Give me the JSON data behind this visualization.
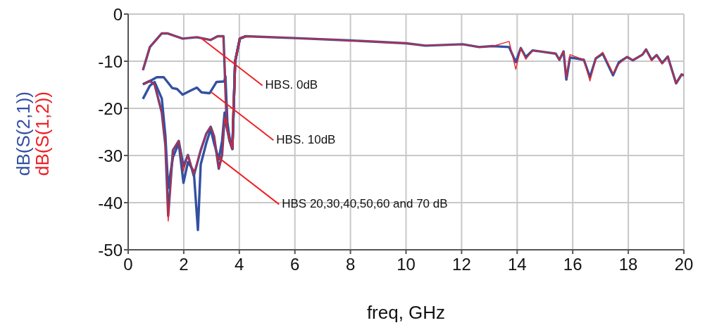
{
  "chart_data": {
    "type": "line",
    "xlabel": "freq, GHz",
    "xlim": [
      0,
      20
    ],
    "xticks": [
      0,
      2,
      4,
      6,
      8,
      10,
      12,
      14,
      16,
      18,
      20
    ],
    "ylim": [
      -50,
      0
    ],
    "yticks": [
      -50,
      -40,
      -30,
      -20,
      -10,
      0
    ],
    "grid": true,
    "marker": "none",
    "line_style": "solid",
    "annotations": [
      {
        "text": "HBS. 0dB",
        "x": 2.6,
        "y": -5
      },
      {
        "text": "HBS. 10dB",
        "x": 3.0,
        "y": -16.6
      },
      {
        "text": "HBS 20,30,40,50,60 and 70 dB",
        "x": 3.2,
        "y": -30.2
      }
    ],
    "series": [
      {
        "name": "dB(S(1,2))",
        "color": "#ee2024",
        "x": [
          0.53,
          0.78,
          1.21,
          1.41,
          1.96,
          2.47,
          2.97,
          3.22,
          3.43,
          3.55,
          3.65,
          3.75,
          3.85,
          4.02,
          4.23,
          6.0,
          8.0,
          10.0,
          10.7,
          12.04,
          12.63,
          13.12,
          13.71,
          13.95,
          14.13,
          14.31,
          14.56,
          15.39,
          15.52,
          15.67,
          15.77,
          15.9,
          16.4,
          16.62,
          16.83,
          17.08,
          17.45,
          17.66,
          17.96,
          18.16,
          18.51,
          18.64,
          18.84,
          19.02,
          19.22,
          19.42,
          19.72,
          19.92,
          20
        ],
        "values": [
          -11.9,
          -7.0,
          -4.1,
          -4.1,
          -5.2,
          -4.9,
          -5.5,
          -4.7,
          -4.7,
          -23.9,
          -26.4,
          -28.6,
          -10,
          -5.2,
          -4.7,
          -5.1,
          -5.6,
          -6.2,
          -6.7,
          -6.4,
          -7.0,
          -6.8,
          -5.8,
          -11.7,
          -7.2,
          -9.6,
          -7.7,
          -8.4,
          -9.7,
          -7.9,
          -13.5,
          -8.6,
          -9.7,
          -14.2,
          -9.4,
          -8.1,
          -12.6,
          -10.6,
          -9.1,
          -9.8,
          -8.6,
          -7.5,
          -9.9,
          -8.7,
          -10.6,
          -9.0,
          -14.7,
          -12.8,
          -13.2
        ]
      },
      {
        "color": "#ee2024",
        "x": [
          0.53,
          0.78,
          0.95,
          1.21,
          1.34,
          1.44,
          1.61,
          1.82,
          1.99,
          2.15,
          2.36,
          2.61,
          2.81,
          2.97,
          3.09,
          3.26,
          3.38,
          3.47,
          3.65,
          3.75,
          3.85,
          4.02,
          4.23
        ],
        "values": [
          -14.9,
          -14.2,
          -14.9,
          -20.9,
          -27.9,
          -43.9,
          -28.9,
          -26.9,
          -33.3,
          -29.9,
          -33.9,
          -28.9,
          -25.4,
          -23.9,
          -25.9,
          -32.8,
          -29.9,
          -21.9,
          -26.9,
          -28.6,
          -10,
          -5.2,
          -4.7
        ]
      },
      {
        "name": "dB(S(2,1))",
        "color": "#3350a2",
        "x": [
          0.53,
          0.78,
          1.21,
          1.41,
          1.96,
          2.47,
          2.97,
          3.22,
          3.43,
          3.55,
          3.65,
          3.75,
          3.85,
          4.02,
          4.23,
          6.0,
          8.0,
          10.0,
          10.7,
          12.04,
          12.63,
          13.12,
          13.71,
          13.95,
          14.13,
          14.31,
          14.56,
          15.39,
          15.52,
          15.67,
          15.77,
          15.9,
          16.4,
          16.62,
          16.83,
          17.08,
          17.45,
          17.66,
          17.96,
          18.16,
          18.51,
          18.64,
          18.84,
          19.02,
          19.22,
          19.42,
          19.72,
          19.92,
          20
        ],
        "values": [
          -11.9,
          -7.0,
          -4.1,
          -4.1,
          -5.2,
          -4.9,
          -5.5,
          -4.7,
          -4.7,
          -23.9,
          -26.4,
          -28.6,
          -10,
          -5.2,
          -4.7,
          -5.1,
          -5.6,
          -6.2,
          -6.7,
          -6.4,
          -7.0,
          -6.8,
          -7.0,
          -10.2,
          -7.2,
          -9.1,
          -7.7,
          -8.4,
          -9.7,
          -7.9,
          -13.9,
          -9.2,
          -9.7,
          -13.4,
          -9.4,
          -8.4,
          -13.0,
          -10.2,
          -9.1,
          -9.8,
          -8.6,
          -7.5,
          -9.7,
          -8.7,
          -10.4,
          -9.0,
          -14.7,
          -12.8,
          -13.0
        ]
      },
      {
        "color": "#3350a2",
        "x": [
          0.53,
          0.78,
          1.03,
          1.28,
          1.59,
          1.76,
          1.96,
          2.22,
          2.47,
          2.64,
          2.93,
          3.18,
          3.46,
          3.5,
          3.57,
          3.65,
          3.75,
          3.85,
          4.02,
          4.23
        ],
        "values": [
          -14.9,
          -14.2,
          -13.4,
          -13.4,
          -15.7,
          -15.9,
          -17.1,
          -16.3,
          -15.6,
          -16.6,
          -16.8,
          -14.4,
          -14.3,
          -13.2,
          -22.9,
          -26.4,
          -28.6,
          -10,
          -5.2,
          -4.7
        ]
      },
      {
        "color": "#3350a2",
        "x": [
          0.53,
          0.78,
          0.95,
          1.21,
          1.34,
          1.44,
          1.61,
          1.82,
          1.99,
          2.15,
          2.36,
          2.61,
          2.81,
          2.97,
          3.09,
          3.26,
          3.38,
          3.47,
          3.65,
          3.75,
          3.85,
          4.02,
          4.23
        ],
        "values": [
          -14.9,
          -14.2,
          -14.9,
          -20.9,
          -27.9,
          -42.8,
          -28.9,
          -26.9,
          -32.3,
          -29.9,
          -34.3,
          -28.9,
          -25.4,
          -23.9,
          -25.9,
          -32.8,
          -29.9,
          -21.9,
          -26.9,
          -28.6,
          -10,
          -5.2,
          -4.7
        ]
      },
      {
        "color": "#3350a2",
        "x": [
          0.53,
          0.78,
          0.95,
          1.21,
          1.34,
          1.44,
          1.61,
          1.82,
          1.99,
          2.15,
          2.36,
          2.51,
          2.61,
          2.81,
          2.97,
          3.09,
          3.26,
          3.38,
          3.47,
          3.65,
          3.75,
          3.85,
          4.02,
          4.23
        ],
        "values": [
          -18.0,
          -15.2,
          -14.4,
          -17.9,
          -25.9,
          -36.9,
          -30.4,
          -27.4,
          -35.8,
          -31.4,
          -33.3,
          -45.8,
          -31.9,
          -27.4,
          -24.4,
          -27.4,
          -30.8,
          -26.9,
          -20.9,
          -26.9,
          -28.6,
          -10,
          -5.2,
          -4.7
        ]
      }
    ]
  }
}
